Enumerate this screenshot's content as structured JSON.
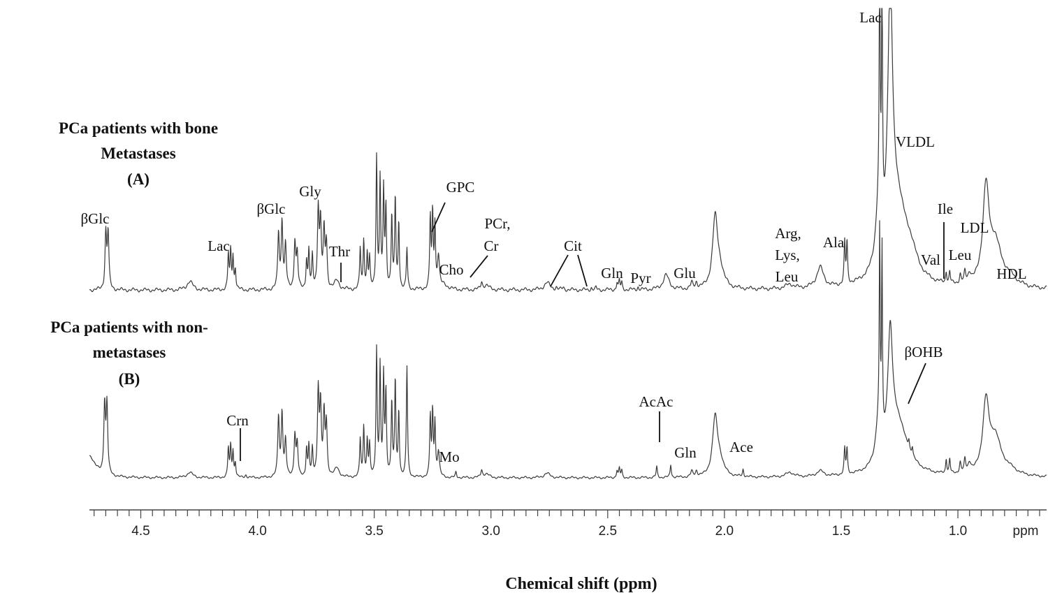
{
  "chart_data": {
    "type": "line",
    "x_axis": {
      "title": "Chemical shift (ppm)",
      "unit_label": "ppm",
      "reversed": true,
      "range": [
        4.72,
        0.62
      ],
      "ticks": [
        4.5,
        4.0,
        3.5,
        3.0,
        2.5,
        2.0,
        1.5,
        1.0
      ],
      "tick_labels": [
        "4.5",
        "4.0",
        "3.5",
        "3.0",
        "2.5",
        "2.0",
        "1.5",
        "1.0"
      ],
      "minor_tick_step": 0.05
    },
    "series": [
      {
        "id": "A",
        "title_lines": [
          "PCa  patients  with bone",
          "Metastases",
          "(A)"
        ],
        "baseline": 0.03,
        "peaks": [
          [
            4.65,
            0.19,
            0.004
          ],
          [
            4.64,
            0.19,
            0.004
          ],
          [
            4.29,
            0.03,
            0.015
          ],
          [
            4.125,
            0.12,
            0.003
          ],
          [
            4.115,
            0.13,
            0.003
          ],
          [
            4.105,
            0.11,
            0.003
          ],
          [
            4.095,
            0.07,
            0.003
          ],
          [
            3.91,
            0.19,
            0.004
          ],
          [
            3.895,
            0.23,
            0.004
          ],
          [
            3.88,
            0.15,
            0.004
          ],
          [
            3.84,
            0.16,
            0.004
          ],
          [
            3.83,
            0.12,
            0.004
          ],
          [
            3.79,
            0.1,
            0.003
          ],
          [
            3.78,
            0.13,
            0.003
          ],
          [
            3.765,
            0.11,
            0.003
          ],
          [
            3.74,
            0.27,
            0.004
          ],
          [
            3.73,
            0.22,
            0.004
          ],
          [
            3.715,
            0.19,
            0.004
          ],
          [
            3.705,
            0.15,
            0.004
          ],
          [
            3.66,
            0.03,
            0.012
          ],
          [
            3.56,
            0.14,
            0.003
          ],
          [
            3.545,
            0.17,
            0.003
          ],
          [
            3.53,
            0.12,
            0.003
          ],
          [
            3.52,
            0.1,
            0.003
          ],
          [
            3.49,
            0.45,
            0.003
          ],
          [
            3.475,
            0.37,
            0.003
          ],
          [
            3.46,
            0.33,
            0.003
          ],
          [
            3.45,
            0.27,
            0.003
          ],
          [
            3.425,
            0.25,
            0.003
          ],
          [
            3.41,
            0.31,
            0.003
          ],
          [
            3.395,
            0.23,
            0.003
          ],
          [
            3.36,
            0.14,
            0.003
          ],
          [
            3.26,
            0.24,
            0.003
          ],
          [
            3.25,
            0.25,
            0.003
          ],
          [
            3.24,
            0.21,
            0.003
          ],
          [
            3.225,
            0.11,
            0.005
          ],
          [
            3.2,
            0.015,
            0.02
          ],
          [
            3.04,
            0.025,
            0.004
          ],
          [
            3.02,
            0.015,
            0.015
          ],
          [
            2.76,
            0.025,
            0.015
          ],
          [
            2.72,
            0.008,
            0.004
          ],
          [
            2.69,
            0.008,
            0.004
          ],
          [
            2.57,
            0.008,
            0.003
          ],
          [
            2.55,
            0.008,
            0.003
          ],
          [
            2.46,
            0.025,
            0.003
          ],
          [
            2.45,
            0.03,
            0.003
          ],
          [
            2.44,
            0.025,
            0.003
          ],
          [
            2.37,
            0.01,
            0.003
          ],
          [
            2.25,
            0.05,
            0.015
          ],
          [
            2.14,
            0.02,
            0.005
          ],
          [
            2.12,
            0.02,
            0.005
          ],
          [
            2.04,
            0.23,
            0.013
          ],
          [
            2.02,
            0.06,
            0.02
          ],
          [
            1.72,
            0.015,
            0.02
          ],
          [
            1.59,
            0.07,
            0.018
          ],
          [
            1.485,
            0.14,
            0.003
          ],
          [
            1.475,
            0.14,
            0.003
          ],
          [
            1.34,
            0.19,
            0.014
          ],
          [
            1.335,
            0.95,
            0.0022
          ],
          [
            1.325,
            0.9,
            0.0022
          ],
          [
            1.29,
            0.85,
            0.012
          ],
          [
            1.26,
            0.28,
            0.05
          ],
          [
            1.2,
            0.06,
            0.03
          ],
          [
            1.05,
            0.04,
            0.003
          ],
          [
            1.035,
            0.04,
            0.003
          ],
          [
            0.99,
            0.03,
            0.004
          ],
          [
            0.97,
            0.035,
            0.004
          ],
          [
            0.95,
            0.03,
            0.008
          ],
          [
            0.88,
            0.32,
            0.016
          ],
          [
            0.84,
            0.14,
            0.03
          ],
          [
            0.78,
            0.03,
            0.04
          ]
        ]
      },
      {
        "id": "B",
        "title_lines": [
          "PCa patients   with non-",
          "metastases",
          "(B)"
        ],
        "baseline": 0.03,
        "peaks": [
          [
            4.72,
            0.12,
            0.03
          ],
          [
            4.655,
            0.38,
            0.004
          ],
          [
            4.645,
            0.38,
            0.004
          ],
          [
            4.29,
            0.03,
            0.015
          ],
          [
            4.125,
            0.16,
            0.003
          ],
          [
            4.115,
            0.17,
            0.003
          ],
          [
            4.105,
            0.14,
            0.003
          ],
          [
            4.095,
            0.08,
            0.003
          ],
          [
            4.05,
            0.015,
            0.004
          ],
          [
            3.91,
            0.33,
            0.004
          ],
          [
            3.895,
            0.35,
            0.004
          ],
          [
            3.88,
            0.2,
            0.004
          ],
          [
            3.84,
            0.23,
            0.004
          ],
          [
            3.83,
            0.18,
            0.004
          ],
          [
            3.79,
            0.16,
            0.003
          ],
          [
            3.78,
            0.17,
            0.003
          ],
          [
            3.765,
            0.15,
            0.003
          ],
          [
            3.74,
            0.47,
            0.004
          ],
          [
            3.73,
            0.38,
            0.004
          ],
          [
            3.715,
            0.33,
            0.004
          ],
          [
            3.705,
            0.28,
            0.004
          ],
          [
            3.66,
            0.05,
            0.012
          ],
          [
            3.56,
            0.21,
            0.003
          ],
          [
            3.545,
            0.28,
            0.003
          ],
          [
            3.53,
            0.2,
            0.003
          ],
          [
            3.52,
            0.17,
            0.003
          ],
          [
            3.49,
            0.7,
            0.003
          ],
          [
            3.475,
            0.6,
            0.003
          ],
          [
            3.46,
            0.54,
            0.003
          ],
          [
            3.45,
            0.45,
            0.003
          ],
          [
            3.425,
            0.41,
            0.003
          ],
          [
            3.41,
            0.53,
            0.003
          ],
          [
            3.395,
            0.36,
            0.003
          ],
          [
            3.36,
            0.61,
            0.003
          ],
          [
            3.26,
            0.33,
            0.003
          ],
          [
            3.25,
            0.35,
            0.003
          ],
          [
            3.24,
            0.29,
            0.003
          ],
          [
            3.225,
            0.14,
            0.005
          ],
          [
            3.15,
            0.03,
            0.003
          ],
          [
            3.04,
            0.04,
            0.004
          ],
          [
            3.02,
            0.02,
            0.015
          ],
          [
            2.76,
            0.025,
            0.015
          ],
          [
            2.46,
            0.04,
            0.003
          ],
          [
            2.45,
            0.05,
            0.003
          ],
          [
            2.44,
            0.04,
            0.003
          ],
          [
            2.29,
            0.06,
            0.003
          ],
          [
            2.23,
            0.07,
            0.003
          ],
          [
            2.14,
            0.03,
            0.005
          ],
          [
            2.12,
            0.03,
            0.005
          ],
          [
            2.04,
            0.31,
            0.013
          ],
          [
            2.02,
            0.08,
            0.02
          ],
          [
            1.92,
            0.04,
            0.003
          ],
          [
            1.72,
            0.025,
            0.02
          ],
          [
            1.59,
            0.03,
            0.018
          ],
          [
            1.485,
            0.14,
            0.003
          ],
          [
            1.475,
            0.14,
            0.003
          ],
          [
            1.34,
            0.22,
            0.014
          ],
          [
            1.335,
            1.05,
            0.0022
          ],
          [
            1.325,
            1.0,
            0.0022
          ],
          [
            1.29,
            0.62,
            0.012
          ],
          [
            1.26,
            0.3,
            0.05
          ],
          [
            1.21,
            0.05,
            0.003
          ],
          [
            1.195,
            0.05,
            0.003
          ],
          [
            1.05,
            0.08,
            0.003
          ],
          [
            1.035,
            0.08,
            0.003
          ],
          [
            0.99,
            0.06,
            0.004
          ],
          [
            0.97,
            0.07,
            0.004
          ],
          [
            0.95,
            0.05,
            0.008
          ],
          [
            0.88,
            0.38,
            0.016
          ],
          [
            0.84,
            0.2,
            0.03
          ],
          [
            0.78,
            0.03,
            0.04
          ]
        ]
      }
    ],
    "annotations": {
      "A": [
        {
          "text": "βGlc",
          "at": 4.65
        },
        {
          "text": "Lac",
          "at": 4.11
        },
        {
          "text": "βGlc",
          "at": 3.9
        },
        {
          "text": "Gly",
          "at": 3.74
        },
        {
          "text": "Thr",
          "at": 3.6,
          "arrow": true
        },
        {
          "text": "GPC",
          "at": 3.23,
          "arrow": true
        },
        {
          "text": "Cho",
          "at": 3.2
        },
        {
          "text": "PCr,",
          "at": 3.06
        },
        {
          "text": "Cr",
          "at": 3.06,
          "arrow": true
        },
        {
          "text": "Cit",
          "at": 2.68,
          "arrow": true
        },
        {
          "text": "Gln",
          "at": 2.46
        },
        {
          "text": "Pyr",
          "at": 2.36
        },
        {
          "text": "Glu",
          "at": 2.14
        },
        {
          "text": "Arg,",
          "at": 1.72
        },
        {
          "text": "Lys,",
          "at": 1.72
        },
        {
          "text": "Leu",
          "at": 1.72
        },
        {
          "text": "Ala",
          "at": 1.48
        },
        {
          "text": "Lac",
          "at": 1.33
        },
        {
          "text": "VLDL",
          "at": 1.29
        },
        {
          "text": "Ile",
          "at": 1.04,
          "arrow": true
        },
        {
          "text": "Val",
          "at": 1.05
        },
        {
          "text": "Leu",
          "at": 0.97
        },
        {
          "text": "LDL",
          "at": 0.88
        },
        {
          "text": "HDL",
          "at": 0.81
        }
      ],
      "B": [
        {
          "text": "Crn",
          "at": 4.06,
          "arrow": true
        },
        {
          "text": "Mo",
          "at": 3.15
        },
        {
          "text": "AcAc",
          "at": 2.24,
          "arrow": true
        },
        {
          "text": "Gln",
          "at": 2.14
        },
        {
          "text": "Ace",
          "at": 1.92
        },
        {
          "text": "βOHB",
          "at": 1.2,
          "arrow": true
        }
      ]
    }
  }
}
